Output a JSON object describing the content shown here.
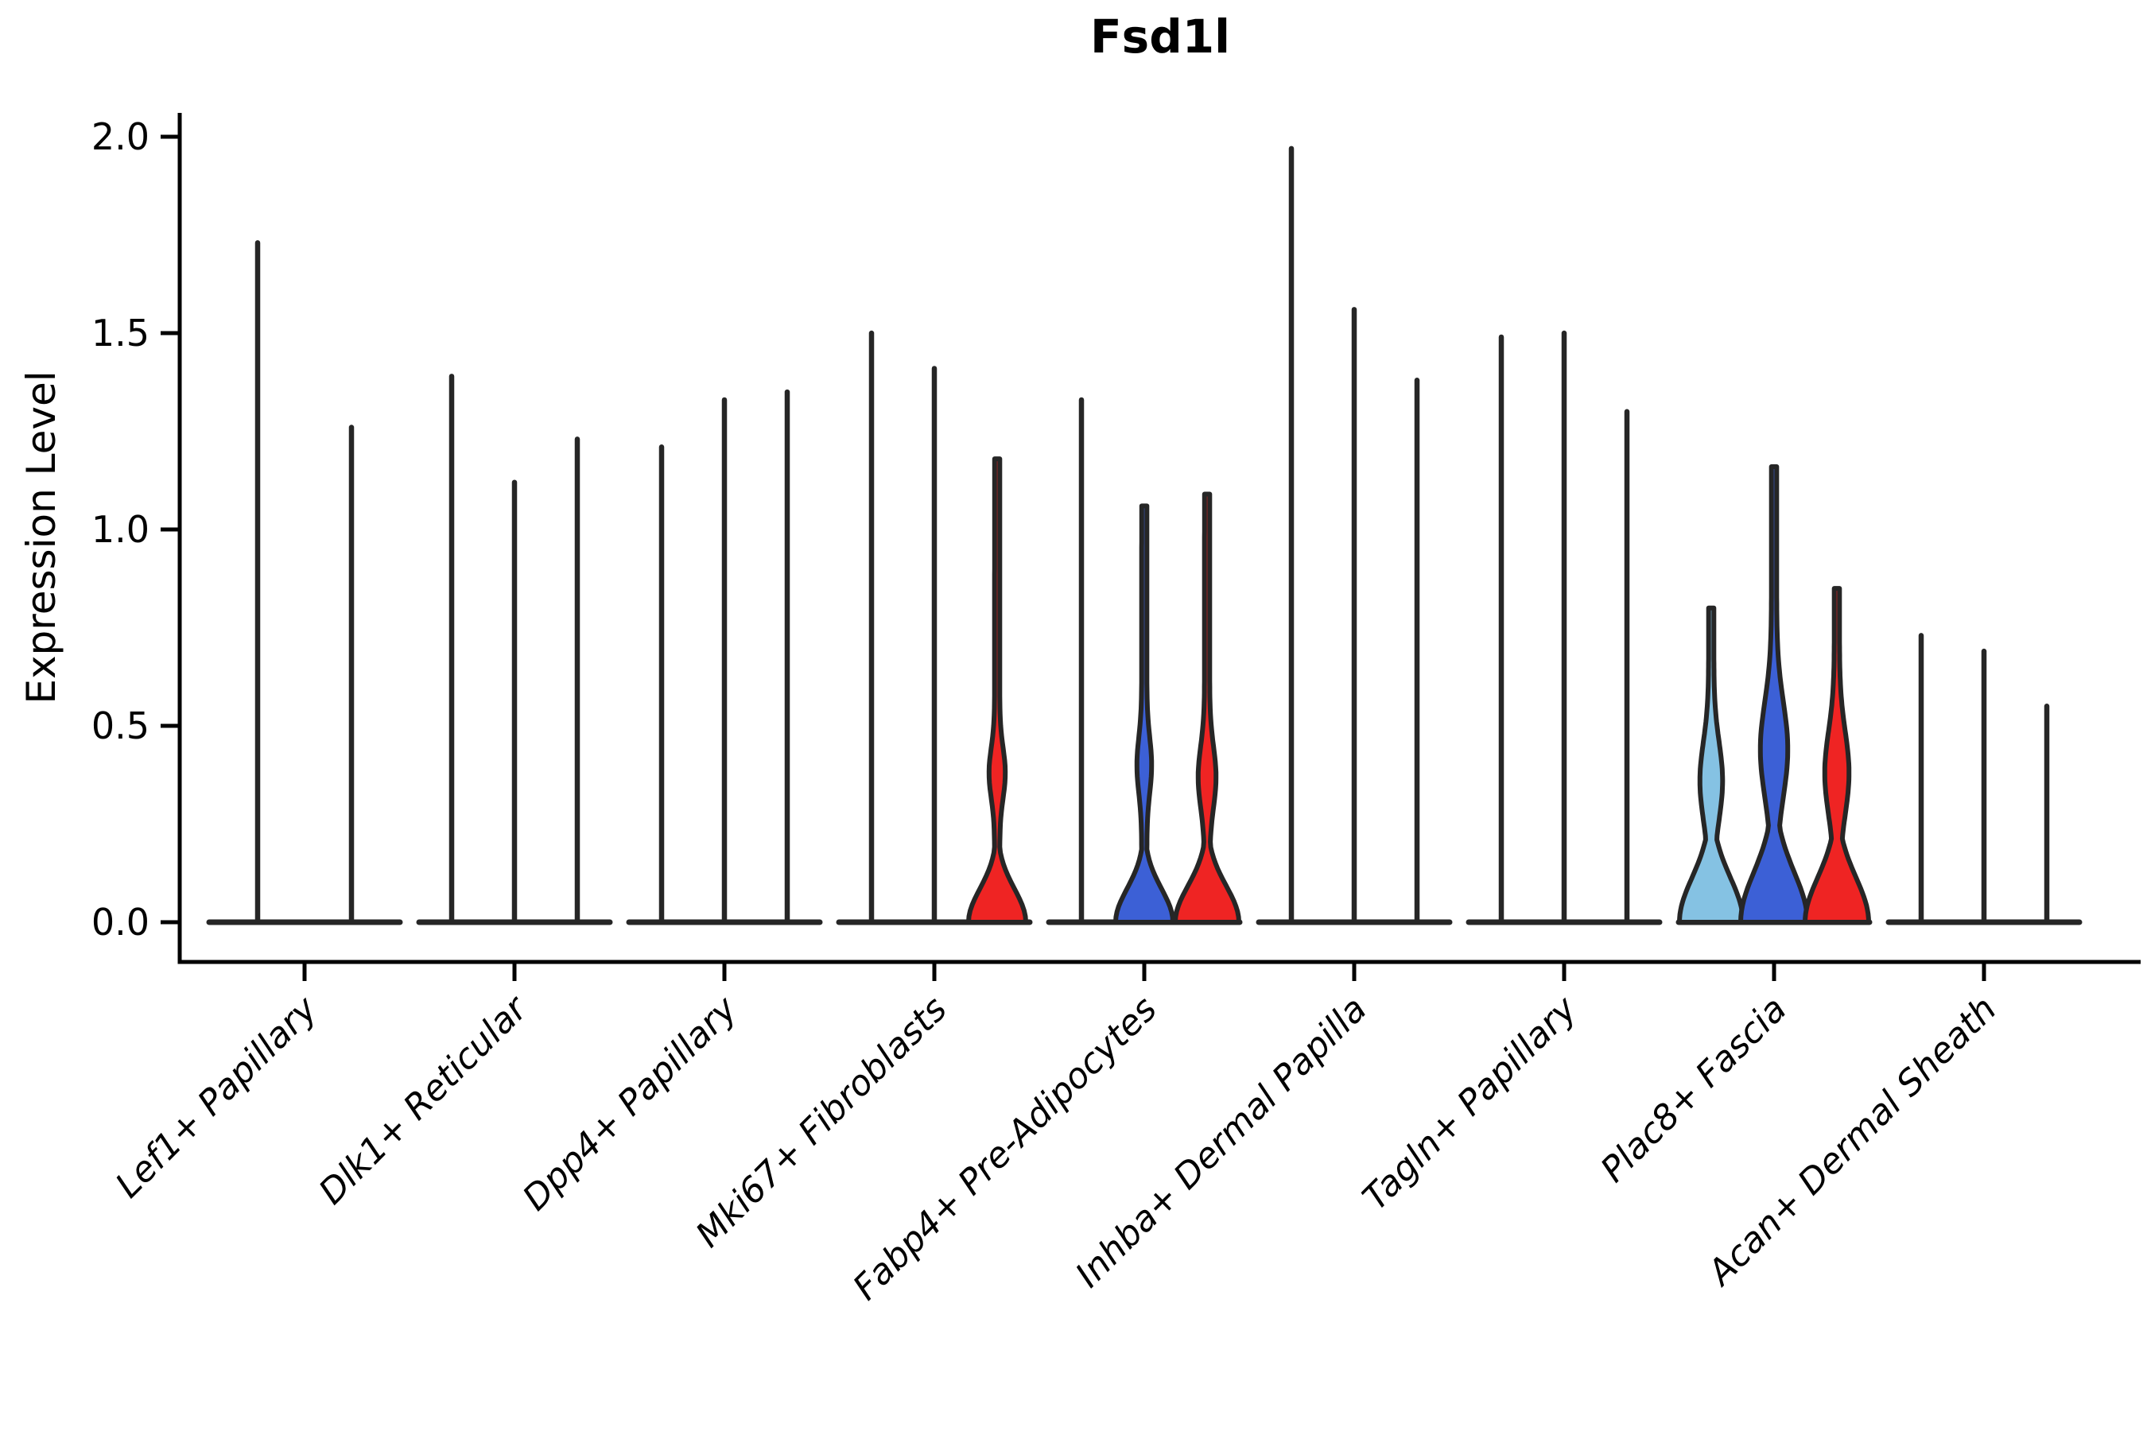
{
  "chart_data": {
    "type": "violin",
    "title": "Fsd1l",
    "ylabel": "Expression Level",
    "xlabel": "",
    "ylim": [
      0.0,
      2.05
    ],
    "yticks": [
      0.0,
      0.5,
      1.0,
      1.5,
      2.0
    ],
    "grid": false,
    "legend": null,
    "palette": {
      "light_blue": "#85C2E3",
      "blue": "#3C60D6",
      "red": "#EF2423",
      "outline": "#262626",
      "axis": "#000000"
    },
    "groups": [
      {
        "category": "Lef1+ Papillary",
        "violins": [
          {
            "max": 1.73,
            "fill": null
          },
          {
            "max": 1.26,
            "fill": null
          }
        ]
      },
      {
        "category": "Dlk1+ Reticular",
        "violins": [
          {
            "max": 1.39,
            "fill": null
          },
          {
            "max": 1.12,
            "fill": null
          },
          {
            "max": 1.23,
            "fill": null
          }
        ]
      },
      {
        "category": "Dpp4+ Papillary",
        "violins": [
          {
            "max": 1.21,
            "fill": null
          },
          {
            "max": 1.33,
            "fill": null
          },
          {
            "max": 1.35,
            "fill": null
          }
        ]
      },
      {
        "category": "Mki67+ Fibroblasts",
        "violins": [
          {
            "max": 1.5,
            "fill": null
          },
          {
            "max": 1.41,
            "fill": null
          },
          {
            "max": 1.18,
            "fill": "red",
            "bulge": {
              "w": 36,
              "s": 0.12
            },
            "spindle": {
              "mu": 0.38,
              "s": 0.09,
              "w": 7
            }
          }
        ]
      },
      {
        "category": "Fabp4+ Pre-Adipocytes",
        "violins": [
          {
            "max": 1.33,
            "fill": null
          },
          {
            "max": 1.06,
            "fill": "blue",
            "bulge": {
              "w": 36,
              "s": 0.12
            },
            "spindle": {
              "mu": 0.4,
              "s": 0.1,
              "w": 6
            }
          },
          {
            "max": 1.09,
            "fill": "red",
            "bulge": {
              "w": 40,
              "s": 0.13
            },
            "spindle": {
              "mu": 0.37,
              "s": 0.11,
              "w": 8
            }
          }
        ]
      },
      {
        "category": "Inhba+ Dermal Papilla",
        "violins": [
          {
            "max": 1.97,
            "fill": null
          },
          {
            "max": 1.56,
            "fill": null
          },
          {
            "max": 1.38,
            "fill": null
          }
        ]
      },
      {
        "category": "Tagln+ Papillary",
        "violins": [
          {
            "max": 1.49,
            "fill": null
          },
          {
            "max": 1.5,
            "fill": null
          },
          {
            "max": 1.3,
            "fill": null
          }
        ]
      },
      {
        "category": "Plac8+ Fascia",
        "violins": [
          {
            "max": 0.8,
            "fill": "light_blue",
            "bulge": {
              "w": 40,
              "s": 0.16
            },
            "spindle": {
              "mu": 0.36,
              "s": 0.14,
              "w": 11
            }
          },
          {
            "max": 1.16,
            "fill": "blue",
            "bulge": {
              "w": 42,
              "s": 0.18
            },
            "spindle": {
              "mu": 0.44,
              "s": 0.17,
              "w": 14
            }
          },
          {
            "max": 0.85,
            "fill": "red",
            "bulge": {
              "w": 40,
              "s": 0.16
            },
            "spindle": {
              "mu": 0.38,
              "s": 0.15,
              "w": 12
            }
          }
        ]
      },
      {
        "category": "Acan+ Dermal Sheath",
        "violins": [
          {
            "max": 0.73,
            "fill": null
          },
          {
            "max": 0.69,
            "fill": null
          },
          {
            "max": 0.55,
            "fill": null
          }
        ]
      }
    ]
  }
}
